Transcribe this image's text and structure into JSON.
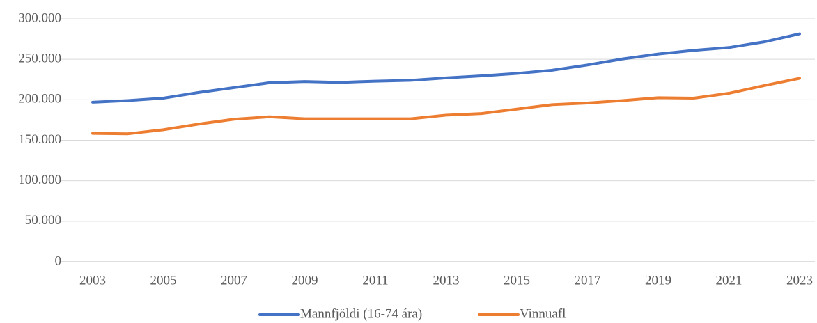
{
  "chart_data": {
    "type": "line",
    "x": [
      2003,
      2004,
      2005,
      2006,
      2007,
      2008,
      2009,
      2010,
      2011,
      2012,
      2013,
      2014,
      2015,
      2016,
      2017,
      2018,
      2019,
      2020,
      2021,
      2022,
      2023
    ],
    "xlim": [
      2003,
      2023
    ],
    "xticks": [
      2003,
      2005,
      2007,
      2009,
      2011,
      2013,
      2015,
      2017,
      2019,
      2021,
      2023
    ],
    "ylim": [
      0,
      300000
    ],
    "yticks": [
      0,
      {
        "value": 50000,
        "label": "50.000"
      },
      {
        "value": 100000,
        "label": "100.000"
      },
      {
        "value": 150000,
        "label": "150.000"
      },
      {
        "value": 200000,
        "label": "200.000"
      },
      {
        "value": 250000,
        "label": "250.000"
      },
      {
        "value": 300000,
        "label": "300.000"
      }
    ],
    "grid": true,
    "legend": "bottom",
    "series": [
      {
        "name": "Mannfjöldi (16-74 ára)",
        "color": "#4472c4",
        "values": [
          197000,
          199000,
          202000,
          209000,
          215000,
          221000,
          222500,
          221500,
          223000,
          224000,
          227000,
          229500,
          232500,
          236500,
          243000,
          250500,
          256500,
          261000,
          264500,
          271500,
          281500
        ]
      },
      {
        "name": "Vinnuafl",
        "color": "#ed7d31",
        "values": [
          158500,
          158000,
          163000,
          170000,
          176000,
          179000,
          176500,
          176500,
          176500,
          176500,
          181000,
          183000,
          188500,
          194000,
          196000,
          199000,
          202500,
          202000,
          208000,
          217500,
          226500
        ]
      }
    ]
  }
}
